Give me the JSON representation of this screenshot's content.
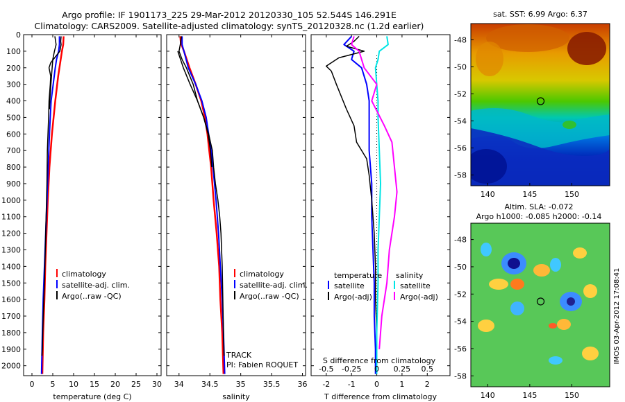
{
  "header": {
    "line1": "Argo profile: IF 1901173_225 29-Mar-2012 20120330_105 52.544S 146.291E",
    "line2": "Climatology: CARS2009. Satellite-adjusted climatology: synTS_20120328.nc (1.2d earlier)"
  },
  "colors": {
    "climatology": "#ff0000",
    "satellite": "#0000ff",
    "argo": "#000000",
    "sat_salinity": "#00e5e5",
    "argo_salinity": "#ff00ff"
  },
  "footer": {
    "stamp": "IMOS 03-Apr-2012 17:08:41"
  },
  "chart_data": [
    {
      "type": "line",
      "id": "temperature",
      "xlabel": "temperature (deg C)",
      "ylabel": "",
      "xlim": [
        -2,
        31
      ],
      "ylim": [
        2060,
        0
      ],
      "x_ticks": [
        "0",
        "5",
        "10",
        "15",
        "20",
        "25",
        "30"
      ],
      "x_tick_values": [
        0,
        5,
        10,
        15,
        20,
        25,
        30
      ],
      "y_ticks": [
        "0",
        "100",
        "200",
        "300",
        "400",
        "500",
        "600",
        "700",
        "800",
        "900",
        "1000",
        "1100",
        "1200",
        "1300",
        "1400",
        "1500",
        "1600",
        "1700",
        "1800",
        "1900",
        "2000"
      ],
      "legend": [
        "climatology",
        "satellite-adj. clim.",
        "Argo(..raw -QC)"
      ],
      "legend_position": "lower-middle",
      "series": [
        {
          "name": "climatology",
          "color": "#ff0000",
          "width": 2.5,
          "points": [
            [
              7.6,
              10
            ],
            [
              7.5,
              60
            ],
            [
              7.2,
              100
            ],
            [
              6.9,
              150
            ],
            [
              6.3,
              250
            ],
            [
              5.6,
              400
            ],
            [
              4.8,
              600
            ],
            [
              4.2,
              800
            ],
            [
              3.8,
              1000
            ],
            [
              3.5,
              1200
            ],
            [
              3.2,
              1400
            ],
            [
              3.0,
              1600
            ],
            [
              2.7,
              1800
            ],
            [
              2.5,
              2050
            ]
          ]
        },
        {
          "name": "satellite-adj. clim.",
          "color": "#0000ff",
          "width": 2,
          "points": [
            [
              6.6,
              10
            ],
            [
              6.6,
              60
            ],
            [
              6.4,
              100
            ],
            [
              5.9,
              150
            ],
            [
              5.6,
              200
            ],
            [
              5.1,
              300
            ],
            [
              4.6,
              400
            ],
            [
              4.2,
              600
            ],
            [
              3.9,
              800
            ],
            [
              3.6,
              1000
            ],
            [
              3.3,
              1200
            ],
            [
              3.0,
              1400
            ],
            [
              2.7,
              1600
            ],
            [
              2.5,
              1800
            ],
            [
              2.3,
              2050
            ]
          ]
        },
        {
          "name": "Argo(..raw -QC)",
          "color": "#000000",
          "width": 1.5,
          "points": [
            [
              7.0,
              10
            ],
            [
              6.9,
              40
            ],
            [
              7.0,
              60
            ],
            [
              6.7,
              100
            ],
            [
              4.5,
              170
            ],
            [
              4.1,
              200
            ],
            [
              4.5,
              250
            ],
            [
              4.4,
              300
            ],
            [
              4.1,
              400
            ],
            [
              4.0,
              500
            ],
            [
              3.7,
              700
            ],
            [
              3.6,
              900
            ],
            [
              3.4,
              1100
            ],
            [
              3.2,
              1300
            ],
            [
              3.0,
              1500
            ],
            [
              2.7,
              1700
            ],
            [
              2.5,
              1900
            ],
            [
              2.4,
              1940
            ]
          ]
        },
        {
          "name": "Argo(..raw -QC)",
          "color": "#000000",
          "width": 1.5,
          "points": [
            [
              5.5,
              10
            ],
            [
              5.8,
              60
            ],
            [
              5.4,
              100
            ],
            [
              5.0,
              150
            ],
            [
              4.7,
              250
            ],
            [
              4.4,
              350
            ],
            [
              4.2,
              450
            ]
          ]
        }
      ]
    },
    {
      "type": "line",
      "id": "salinity",
      "xlabel": "salinity",
      "ylabel": "",
      "xlim": [
        33.8,
        36.05
      ],
      "ylim": [
        2060,
        0
      ],
      "x_ticks": [
        "34",
        "34.5",
        "35",
        "35.5",
        "36"
      ],
      "x_tick_values": [
        34,
        34.5,
        35,
        35.5,
        36
      ],
      "legend": [
        "climatology",
        "satellite-adj. clim.",
        "Argo(..raw -QC)"
      ],
      "legend_position": "lower-right",
      "annotations": [
        "TRACK",
        "PI: Fabien ROQUET"
      ],
      "series": [
        {
          "name": "climatology",
          "color": "#ff0000",
          "width": 2.5,
          "points": [
            [
              34.02,
              10
            ],
            [
              34.03,
              50
            ],
            [
              34.08,
              100
            ],
            [
              34.17,
              200
            ],
            [
              34.27,
              300
            ],
            [
              34.36,
              400
            ],
            [
              34.42,
              500
            ],
            [
              34.46,
              600
            ],
            [
              34.49,
              700
            ],
            [
              34.52,
              800
            ],
            [
              34.56,
              1000
            ],
            [
              34.61,
              1200
            ],
            [
              34.65,
              1400
            ],
            [
              34.67,
              1600
            ],
            [
              34.7,
              1800
            ],
            [
              34.72,
              2050
            ]
          ]
        },
        {
          "name": "satellite-adj. clim.",
          "color": "#0000ff",
          "width": 2,
          "points": [
            [
              34.05,
              10
            ],
            [
              34.05,
              60
            ],
            [
              34.08,
              100
            ],
            [
              34.15,
              200
            ],
            [
              34.27,
              300
            ],
            [
              34.37,
              400
            ],
            [
              34.44,
              500
            ],
            [
              34.48,
              600
            ],
            [
              34.52,
              700
            ],
            [
              34.55,
              800
            ],
            [
              34.6,
              1000
            ],
            [
              34.64,
              1200
            ],
            [
              34.67,
              1400
            ],
            [
              34.7,
              1600
            ],
            [
              34.72,
              1800
            ],
            [
              34.74,
              2050
            ]
          ]
        },
        {
          "name": "Argo(..raw -QC)",
          "color": "#000000",
          "width": 1.5,
          "points": [
            [
              34.04,
              10
            ],
            [
              34.02,
              60
            ],
            [
              34.0,
              100
            ],
            [
              34.05,
              150
            ],
            [
              34.12,
              200
            ],
            [
              34.23,
              300
            ],
            [
              34.3,
              400
            ],
            [
              34.4,
              500
            ],
            [
              34.48,
              600
            ],
            [
              34.54,
              700
            ],
            [
              34.56,
              800
            ],
            [
              34.59,
              900
            ],
            [
              34.63,
              1000
            ],
            [
              34.66,
              1100
            ],
            [
              34.68,
              1200
            ],
            [
              34.7,
              1400
            ],
            [
              34.71,
              1600
            ],
            [
              34.72,
              1800
            ],
            [
              34.73,
              1940
            ]
          ]
        },
        {
          "name": "Argo(..raw -QC)",
          "color": "#000000",
          "width": 1.5,
          "points": [
            [
              33.98,
              100
            ],
            [
              34.07,
              200
            ],
            [
              34.18,
              300
            ],
            [
              34.3,
              400
            ],
            [
              34.4,
              500
            ],
            [
              34.47,
              600
            ],
            [
              34.51,
              700
            ],
            [
              34.53,
              800
            ]
          ]
        }
      ]
    },
    {
      "type": "line",
      "id": "difference",
      "xlabel": "T difference from climatology",
      "xlabel2": "S difference from climatology",
      "xlim": [
        -2.6,
        2.9
      ],
      "x_ticks": [
        "-2",
        "-1",
        "0",
        "1",
        "2"
      ],
      "x_tick_values": [
        -2,
        -1,
        0,
        1,
        2
      ],
      "x2_ticks": [
        "-0.5",
        "-0.25",
        "0",
        "0.25",
        "0.5"
      ],
      "x2_tick_values": [
        -0.5,
        -0.25,
        0,
        0.25,
        0.5
      ],
      "ylim": [
        2060,
        0
      ],
      "legend_groups": [
        {
          "title": "temperature",
          "entries": [
            "satellite",
            "Argo(-adj)"
          ]
        },
        {
          "title": "salinity",
          "entries": [
            "satellite",
            "Argo(-adj)"
          ]
        }
      ],
      "legend_position": "lower-middle",
      "series": [
        {
          "name": "temperature satellite",
          "color": "#0000ff",
          "width": 2,
          "points": [
            [
              -1.0,
              10
            ],
            [
              -1.3,
              60
            ],
            [
              -0.9,
              100
            ],
            [
              -1.0,
              150
            ],
            [
              -0.6,
              200
            ],
            [
              -0.4,
              300
            ],
            [
              -0.3,
              400
            ],
            [
              -0.3,
              500
            ],
            [
              -0.3,
              600
            ],
            [
              -0.3,
              700
            ],
            [
              -0.2,
              900
            ],
            [
              -0.2,
              1100
            ],
            [
              -0.15,
              1300
            ],
            [
              -0.1,
              1500
            ],
            [
              -0.1,
              1700
            ],
            [
              -0.05,
              1900
            ],
            [
              -0.05,
              2050
            ]
          ]
        },
        {
          "name": "temperature Argo(-adj)",
          "color": "#000000",
          "width": 1.5,
          "points": [
            [
              -0.7,
              10
            ],
            [
              -0.9,
              40
            ],
            [
              -1.2,
              70
            ],
            [
              -0.5,
              100
            ],
            [
              -1.5,
              140
            ],
            [
              -2.0,
              190
            ],
            [
              -1.8,
              220
            ],
            [
              -1.6,
              300
            ],
            [
              -1.2,
              450
            ],
            [
              -0.9,
              550
            ],
            [
              -0.8,
              650
            ],
            [
              -0.4,
              750
            ],
            [
              -0.3,
              850
            ],
            [
              -0.2,
              1000
            ],
            [
              -0.1,
              1200
            ],
            [
              -0.05,
              1400
            ],
            [
              -0.05,
              1600
            ],
            [
              0,
              1800
            ],
            [
              0,
              1940
            ]
          ]
        },
        {
          "name": "salinity satellite",
          "color": "#00e5e5",
          "width": 2,
          "points": [
            [
              0.4,
              10
            ],
            [
              0.45,
              60
            ],
            [
              0.1,
              100
            ],
            [
              0.05,
              150
            ],
            [
              -0.05,
              200
            ],
            [
              0,
              300
            ],
            [
              0.05,
              400
            ],
            [
              0.05,
              500
            ],
            [
              0.1,
              700
            ],
            [
              0.15,
              900
            ],
            [
              0.1,
              1100
            ],
            [
              0.05,
              1300
            ],
            [
              0.05,
              1500
            ],
            [
              0,
              1800
            ],
            [
              0,
              2050
            ]
          ]
        },
        {
          "name": "salinity Argo(-adj)",
          "color": "#ff00ff",
          "width": 2,
          "points": [
            [
              -0.9,
              10
            ],
            [
              -1.0,
              60
            ],
            [
              -0.7,
              100
            ],
            [
              -0.5,
              200
            ],
            [
              0,
              300
            ],
            [
              -0.2,
              400
            ],
            [
              0.3,
              550
            ],
            [
              0.6,
              650
            ],
            [
              0.7,
              800
            ],
            [
              0.8,
              950
            ],
            [
              0.7,
              1100
            ],
            [
              0.5,
              1300
            ],
            [
              0.4,
              1500
            ],
            [
              0.2,
              1700
            ],
            [
              0.1,
              1900
            ]
          ]
        }
      ]
    },
    {
      "type": "heatmap",
      "id": "sst-map",
      "title": "sat. SST: 6.99 Argo: 6.37",
      "xlim": [
        138,
        154.5
      ],
      "ylim": [
        -58.8,
        -46.8
      ],
      "x_ticks": [
        "140",
        "145",
        "150"
      ],
      "x_tick_values": [
        140,
        145,
        150
      ],
      "y_ticks": [
        "-48",
        "-50",
        "-52",
        "-54",
        "-56",
        "-58"
      ],
      "y_tick_values": [
        -48,
        -50,
        -52,
        -54,
        -56,
        -58
      ],
      "marker": {
        "lon": 146.291,
        "lat": -52.544
      }
    },
    {
      "type": "heatmap",
      "id": "sla-map",
      "title": "Altim. SLA: -0.072",
      "subtitle": "Argo h1000: -0.085 h2000: -0.14",
      "xlim": [
        138,
        154.5
      ],
      "ylim": [
        -58.8,
        -46.8
      ],
      "x_ticks": [
        "140",
        "145",
        "150"
      ],
      "x_tick_values": [
        140,
        145,
        150
      ],
      "y_ticks": [
        "-48",
        "-50",
        "-52",
        "-54",
        "-56",
        "-58"
      ],
      "y_tick_values": [
        -48,
        -50,
        -52,
        -54,
        -56,
        -58
      ],
      "marker": {
        "lon": 146.291,
        "lat": -52.544
      }
    }
  ]
}
